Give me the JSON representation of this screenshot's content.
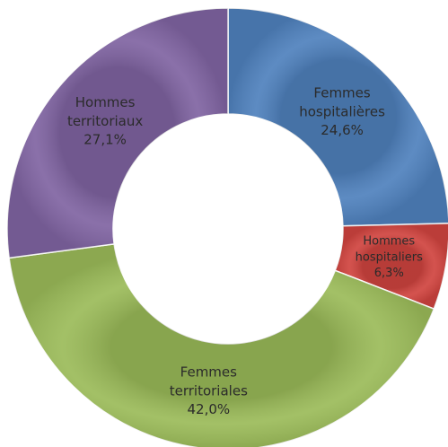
{
  "chart_data": {
    "type": "donut",
    "categories": [
      "Femmes hospitalières",
      "Hommes hospitaliers",
      "Femmes territoriales",
      "Hommes territoriaux"
    ],
    "values": [
      24.6,
      6.3,
      42.0,
      27.1
    ],
    "value_labels": [
      "24,6%",
      "6,3%",
      "42,0%",
      "27,1%"
    ],
    "colors": [
      "#4f81bd",
      "#d0443f",
      "#9bbb59",
      "#8064a2"
    ]
  }
}
